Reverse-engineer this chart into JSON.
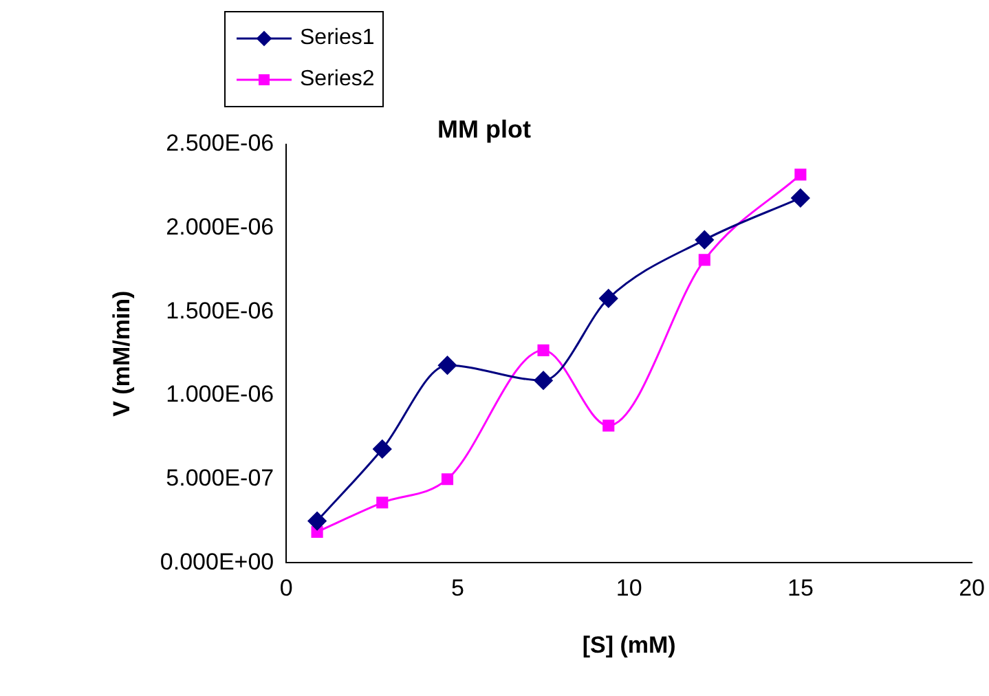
{
  "chart_data": {
    "type": "line",
    "title": "MM plot",
    "xlabel": "[S] (mM)",
    "ylabel": "V (mM/min)",
    "legend": "top left",
    "grid": false,
    "xlim": [
      0,
      20
    ],
    "xticks": [
      0,
      5,
      10,
      15,
      20
    ],
    "ylim": [
      0,
      2.5e-06
    ],
    "yticks": [
      {
        "value": 0,
        "label": "0.000E+00"
      },
      {
        "value": 5e-07,
        "label": "5.000E-07"
      },
      {
        "value": 1e-06,
        "label": "1.000E-06"
      },
      {
        "value": 1.5e-06,
        "label": "1.500E-06"
      },
      {
        "value": 2e-06,
        "label": "2.000E-06"
      },
      {
        "value": 2.5e-06,
        "label": "2.500E-06"
      }
    ],
    "x": [
      0.9,
      2.8,
      4.7,
      7.5,
      9.4,
      12.2,
      15
    ],
    "series": [
      {
        "name": "Series1",
        "color": "#000080",
        "marker": "diamond",
        "values": [
          2.5e-07,
          6.8e-07,
          1.18e-06,
          1.09e-06,
          1.58e-06,
          1.93e-06,
          2.18e-06
        ]
      },
      {
        "name": "Series2",
        "color": "#ff00ff",
        "marker": "square",
        "values": [
          1.85e-07,
          3.6e-07,
          5e-07,
          1.27e-06,
          8.2e-07,
          1.81e-06,
          2.32e-06
        ]
      }
    ]
  }
}
